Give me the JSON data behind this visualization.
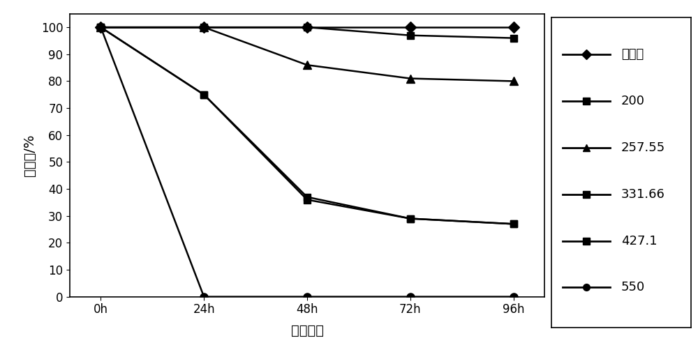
{
  "x_ticks": [
    "0h",
    "24h",
    "48h",
    "72h",
    "96h"
  ],
  "x_values": [
    0,
    1,
    2,
    3,
    4
  ],
  "series": [
    {
      "label": "对照组",
      "marker": "D",
      "values": [
        100,
        100,
        100,
        100,
        100
      ],
      "markersize": 8,
      "linewidth": 1.8
    },
    {
      "label": "200",
      "marker": "s",
      "values": [
        100,
        100,
        100,
        97,
        96
      ],
      "markersize": 7,
      "linewidth": 1.8
    },
    {
      "label": "257.55",
      "marker": "^",
      "values": [
        100,
        100,
        86,
        81,
        80
      ],
      "markersize": 8,
      "linewidth": 1.8
    },
    {
      "label": "331.66",
      "marker": "s",
      "values": [
        100,
        75,
        37,
        29,
        27
      ],
      "markersize": 7,
      "linewidth": 1.8
    },
    {
      "label": "427.1",
      "marker": "s",
      "values": [
        100,
        75,
        36,
        29,
        27
      ],
      "markersize": 7,
      "linewidth": 1.8
    },
    {
      "label": "550",
      "marker": "o",
      "values": [
        100,
        0,
        0,
        0,
        0
      ],
      "markersize": 8,
      "linewidth": 1.8
    }
  ],
  "ylabel": "存活率/%",
  "xlabel": "浸泡时间",
  "ylim": [
    0,
    105
  ],
  "yticks": [
    0,
    10,
    20,
    30,
    40,
    50,
    60,
    70,
    80,
    90,
    100
  ],
  "legend_fontsize": 13,
  "axis_fontsize": 14,
  "tick_fontsize": 12,
  "figure_width": 10.0,
  "figure_height": 4.95,
  "dpi": 100
}
